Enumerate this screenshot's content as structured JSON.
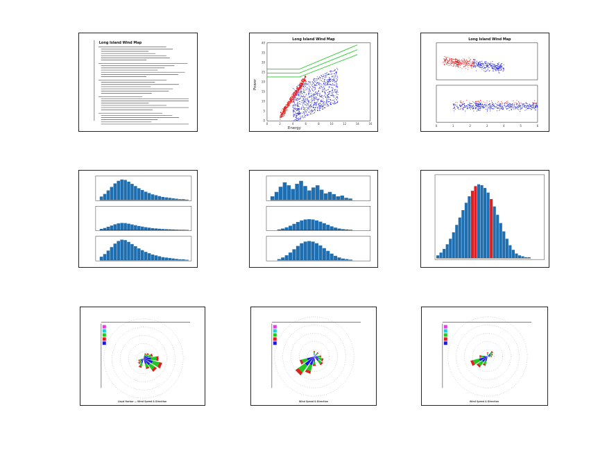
{
  "panels": [
    {
      "id": "report",
      "title": "Long Island Wind Map"
    },
    {
      "id": "scatter",
      "title": "Long Island Wind Map",
      "xlabel": "Energy",
      "ylabel": "Power",
      "xticks": [
        "0",
        "2",
        "4",
        "6",
        "8",
        "10",
        "12",
        "14",
        "16"
      ],
      "yticks": [
        "0",
        "5",
        "10",
        "15",
        "20",
        "25",
        "30",
        "35",
        "40"
      ]
    },
    {
      "id": "stacked",
      "title": "Long Island Wind Map",
      "xticks": [
        "0",
        "1",
        "2",
        "3",
        "4",
        "5",
        "6"
      ]
    },
    {
      "id": "hist3a"
    },
    {
      "id": "hist3b"
    },
    {
      "id": "hist1"
    },
    {
      "id": "rose1",
      "footer": "Lloyd Harbor — Wind Speed & Direction"
    },
    {
      "id": "rose2",
      "footer": "Wind Speed & Direction"
    },
    {
      "id": "rose3",
      "footer": "Wind Speed & Direction"
    }
  ],
  "colors": {
    "red": "#e02020",
    "blue": "#1a1adb",
    "green": "#22c822",
    "bar": "#1f6fb0",
    "magenta": "#e040e0",
    "cyan": "#20c8e0"
  },
  "chart_data": [
    {
      "type": "scatter",
      "title": "Long Island Wind Map",
      "xlabel": "Energy",
      "ylabel": "Power",
      "xlim": [
        0,
        16
      ],
      "ylim": [
        0,
        40
      ],
      "series": [
        {
          "color": "#e02020"
        },
        {
          "color": "#1a1adb"
        }
      ],
      "annotation_lines": [
        {
          "x": [
            5.0,
            14.0
          ],
          "y": [
            26.5,
            39.0
          ]
        },
        {
          "x": [
            5.0,
            14.0
          ],
          "y": [
            24.5,
            36.5
          ]
        },
        {
          "x": [
            5.0,
            14.0
          ],
          "y": [
            22.5,
            34.0
          ]
        }
      ]
    },
    {
      "type": "scatter",
      "title": "Long Island Wind Map",
      "xlim": [
        0,
        6
      ]
    },
    {
      "type": "bar",
      "values": [
        8,
        14,
        22,
        30,
        38,
        44,
        47,
        46,
        42,
        37,
        32,
        27,
        23,
        19,
        16,
        13,
        11,
        9,
        7,
        6,
        5,
        4,
        3,
        2,
        2,
        1
      ]
    },
    {
      "type": "bar",
      "values": [
        10,
        22,
        36,
        48,
        40,
        30,
        44,
        52,
        38,
        26,
        34,
        40,
        28,
        18,
        22,
        16,
        10,
        12,
        6,
        4
      ]
    },
    {
      "type": "bar",
      "values": [
        3,
        6,
        10,
        15,
        21,
        28,
        36,
        44,
        52,
        60,
        67,
        73,
        78,
        80,
        79,
        76,
        71,
        64,
        56,
        47,
        38,
        29,
        21,
        14,
        9,
        5,
        3,
        2,
        1,
        1
      ]
    },
    {
      "type": "bar",
      "values": [
        2,
        5,
        9,
        14,
        20,
        26,
        31,
        34,
        35,
        34,
        31,
        27,
        22,
        17,
        12,
        8,
        5,
        3,
        2,
        1
      ]
    },
    {
      "type": "bar",
      "values": [
        1,
        3,
        6,
        11,
        18,
        27,
        36,
        44,
        50,
        54,
        53,
        48,
        40,
        30,
        20,
        12,
        6,
        3,
        1
      ]
    }
  ]
}
